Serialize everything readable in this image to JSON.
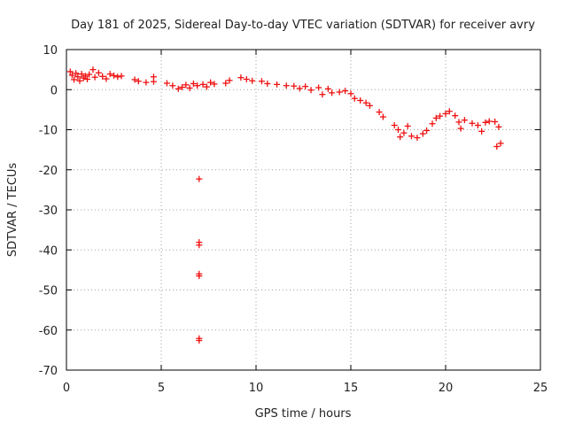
{
  "chart_data": {
    "type": "scatter",
    "title": "Day 181 of 2025, Sidereal Day-to-day VTEC variation (SDTVAR) for receiver avry",
    "xlabel": "GPS time / hours",
    "ylabel": "SDTVAR / TECUs",
    "xlim": [
      0,
      25
    ],
    "ylim": [
      -70,
      10
    ],
    "xticks": [
      0,
      5,
      10,
      15,
      20,
      25
    ],
    "yticks": [
      10,
      0,
      -10,
      -20,
      -30,
      -40,
      -50,
      -60,
      -70
    ],
    "grid": true,
    "marker": "+",
    "colors": {
      "series": "#ee1111",
      "grid": "#a0a0a0",
      "axis": "#000000",
      "text": "#222222"
    },
    "series": [
      {
        "name": "SDTVAR",
        "points": [
          [
            0.2,
            4.5
          ],
          [
            0.3,
            3.6
          ],
          [
            0.4,
            2.5
          ],
          [
            0.5,
            4.1
          ],
          [
            0.6,
            3.2
          ],
          [
            0.7,
            2.2
          ],
          [
            0.8,
            3.9
          ],
          [
            0.9,
            2.9
          ],
          [
            1.0,
            3.4
          ],
          [
            1.1,
            2.6
          ],
          [
            1.2,
            3.8
          ],
          [
            1.4,
            5.0
          ],
          [
            1.5,
            3.1
          ],
          [
            1.7,
            4.2
          ],
          [
            1.9,
            3.3
          ],
          [
            2.1,
            2.7
          ],
          [
            2.3,
            3.9
          ],
          [
            2.5,
            3.5
          ],
          [
            2.7,
            3.2
          ],
          [
            2.9,
            3.4
          ],
          [
            3.6,
            2.5
          ],
          [
            3.8,
            2.1
          ],
          [
            4.2,
            1.8
          ],
          [
            4.6,
            2.0
          ],
          [
            4.6,
            3.2
          ],
          [
            5.3,
            1.6
          ],
          [
            5.6,
            1.0
          ],
          [
            5.9,
            0.2
          ],
          [
            6.1,
            0.6
          ],
          [
            6.3,
            1.2
          ],
          [
            6.5,
            0.4
          ],
          [
            6.7,
            1.5
          ],
          [
            6.9,
            1.0
          ],
          [
            7.2,
            1.3
          ],
          [
            7.4,
            0.7
          ],
          [
            7.6,
            1.8
          ],
          [
            7.8,
            1.4
          ],
          [
            8.4,
            1.6
          ],
          [
            8.6,
            2.3
          ],
          [
            9.2,
            3.0
          ],
          [
            9.5,
            2.6
          ],
          [
            9.8,
            2.2
          ],
          [
            10.3,
            2.1
          ],
          [
            10.6,
            1.5
          ],
          [
            11.1,
            1.3
          ],
          [
            11.6,
            1.0
          ],
          [
            12.0,
            0.9
          ],
          [
            12.3,
            0.3
          ],
          [
            12.6,
            0.8
          ],
          [
            12.9,
            -0.1
          ],
          [
            13.3,
            0.5
          ],
          [
            13.5,
            -1.2
          ],
          [
            13.8,
            0.2
          ],
          [
            14.0,
            -0.8
          ],
          [
            14.4,
            -0.6
          ],
          [
            14.7,
            -0.3
          ],
          [
            15.0,
            -1.0
          ],
          [
            15.2,
            -2.2
          ],
          [
            15.5,
            -2.7
          ],
          [
            15.8,
            -3.3
          ],
          [
            16.0,
            -4.0
          ],
          [
            16.5,
            -5.6
          ],
          [
            16.7,
            -6.8
          ],
          [
            17.3,
            -8.9
          ],
          [
            17.5,
            -10.0
          ],
          [
            17.6,
            -11.8
          ],
          [
            17.8,
            -10.8
          ],
          [
            18.0,
            -9.1
          ],
          [
            18.2,
            -11.6
          ],
          [
            18.5,
            -12.0
          ],
          [
            18.8,
            -11.0
          ],
          [
            19.0,
            -10.2
          ],
          [
            19.3,
            -8.5
          ],
          [
            19.5,
            -7.1
          ],
          [
            19.7,
            -6.6
          ],
          [
            20.0,
            -6.0
          ],
          [
            20.2,
            -5.4
          ],
          [
            20.5,
            -6.5
          ],
          [
            20.7,
            -8.1
          ],
          [
            20.8,
            -9.7
          ],
          [
            21.0,
            -7.6
          ],
          [
            21.4,
            -8.4
          ],
          [
            21.7,
            -8.9
          ],
          [
            21.9,
            -10.4
          ],
          [
            22.1,
            -8.2
          ],
          [
            22.3,
            -7.9
          ],
          [
            22.6,
            -8.0
          ],
          [
            22.8,
            -9.3
          ],
          [
            22.7,
            -14.2
          ],
          [
            22.9,
            -13.4
          ],
          [
            7.0,
            -22.3
          ],
          [
            7.0,
            -38.1
          ],
          [
            7.0,
            -38.8
          ],
          [
            7.0,
            -46.0
          ],
          [
            7.0,
            -46.5
          ],
          [
            7.0,
            -62.1
          ],
          [
            7.0,
            -62.6
          ]
        ]
      }
    ]
  }
}
